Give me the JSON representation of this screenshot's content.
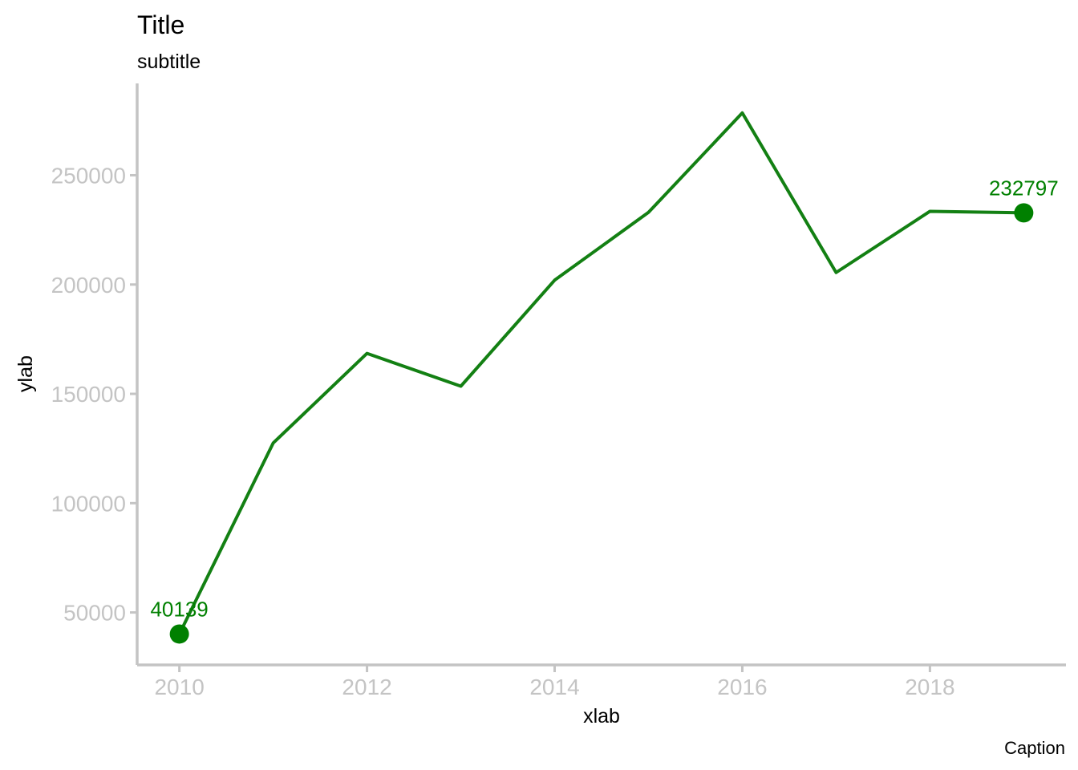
{
  "chart_data": {
    "type": "line",
    "title": "Title",
    "subtitle": "subtitle",
    "caption": "Caption",
    "xlabel": "xlab",
    "ylabel": "ylab",
    "x": [
      2010,
      2011,
      2012,
      2013,
      2014,
      2015,
      2016,
      2017,
      2018,
      2019
    ],
    "series": [
      {
        "values": [
          40139,
          127500,
          168500,
          153500,
          202000,
          233000,
          278500,
          205500,
          233500,
          232797
        ]
      }
    ],
    "xticks": [
      2010,
      2012,
      2014,
      2016,
      2018
    ],
    "yticks": [
      50000,
      100000,
      150000,
      200000,
      250000
    ],
    "xlim": [
      2009.55,
      2019.45
    ],
    "ylim": [
      26000,
      292000
    ],
    "point_labels": [
      {
        "x": 2010,
        "y": 40139,
        "text": "40139"
      },
      {
        "x": 2019,
        "y": 232797,
        "text": "232797"
      }
    ],
    "grid": false,
    "legend": "none",
    "colors": {
      "line": "#138013",
      "points": "#008000",
      "labels": "#008000",
      "axis": "#c4c4c4",
      "ticks_text": "#c4c4c4"
    }
  }
}
